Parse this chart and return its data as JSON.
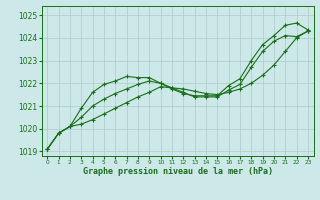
{
  "title": "Graphe pression niveau de la mer (hPa)",
  "background_color": "#cce8e8",
  "grid_color": "#aacccc",
  "line_color": "#1a6e1a",
  "marker_color": "#1a6e1a",
  "ylim": [
    1018.8,
    1025.4
  ],
  "xlim": [
    -0.5,
    23.5
  ],
  "yticks": [
    1019,
    1020,
    1021,
    1022,
    1023,
    1024,
    1025
  ],
  "xticks": [
    0,
    1,
    2,
    3,
    4,
    5,
    6,
    7,
    8,
    9,
    10,
    11,
    12,
    13,
    14,
    15,
    16,
    17,
    18,
    19,
    20,
    21,
    22,
    23
  ],
  "series": [
    [
      1019.1,
      1019.8,
      1020.1,
      1020.9,
      1021.6,
      1021.95,
      1022.1,
      1022.3,
      1022.25,
      1022.25,
      1022.0,
      1021.75,
      1021.55,
      1021.45,
      1021.45,
      1021.45,
      1021.9,
      1022.2,
      1023.0,
      1023.7,
      1024.1,
      1024.55,
      1024.65,
      1024.35
    ],
    [
      1019.1,
      1019.8,
      1020.1,
      1020.5,
      1021.0,
      1021.3,
      1021.55,
      1021.75,
      1021.95,
      1022.1,
      1022.0,
      1021.8,
      1021.6,
      1021.4,
      1021.4,
      1021.4,
      1021.7,
      1021.95,
      1022.7,
      1023.4,
      1023.85,
      1024.1,
      1024.05,
      1024.3
    ],
    [
      1019.1,
      1019.8,
      1020.1,
      1020.2,
      1020.4,
      1020.65,
      1020.9,
      1021.15,
      1021.4,
      1021.6,
      1021.85,
      1021.8,
      1021.75,
      1021.65,
      1021.55,
      1021.5,
      1021.6,
      1021.75,
      1022.0,
      1022.35,
      1022.8,
      1023.4,
      1024.0,
      1024.3
    ]
  ]
}
